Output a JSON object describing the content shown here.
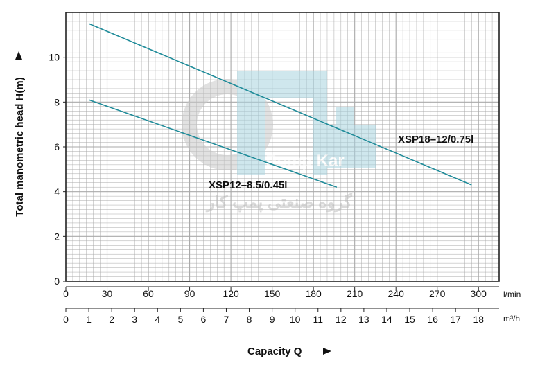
{
  "chart_data": {
    "type": "line",
    "title": "",
    "xlabel": "Capacity Q",
    "ylabel": "Total manometric head H(m)",
    "x_unit_primary": "l/min",
    "x_unit_secondary": "m³/h",
    "xlim": [
      0,
      315
    ],
    "ylim": [
      0,
      12
    ],
    "x_ticks_primary": [
      0,
      30,
      60,
      90,
      120,
      150,
      180,
      210,
      240,
      270,
      300
    ],
    "x_ticks_secondary": [
      0,
      1,
      2,
      3,
      4,
      5,
      6,
      7,
      8,
      9,
      10,
      11,
      12,
      13,
      14,
      15,
      16,
      17,
      18
    ],
    "y_ticks": [
      0,
      2,
      4,
      6,
      8,
      10
    ],
    "grid": true,
    "series": [
      {
        "name": "XSP18–12/0.75l",
        "x": [
          16.7,
          295
        ],
        "y": [
          11.5,
          4.3
        ]
      },
      {
        "name": "XSP12–8.5/0.45l",
        "x": [
          16.7,
          197
        ],
        "y": [
          8.1,
          4.2
        ]
      }
    ],
    "colors": {
      "series": "#1e8b99",
      "grid": "#a9a9a9",
      "frame": "#222222"
    }
  },
  "watermark": {
    "latin": "Pump Kar",
    "persian": "گروه صنعتی پمپ کار"
  }
}
